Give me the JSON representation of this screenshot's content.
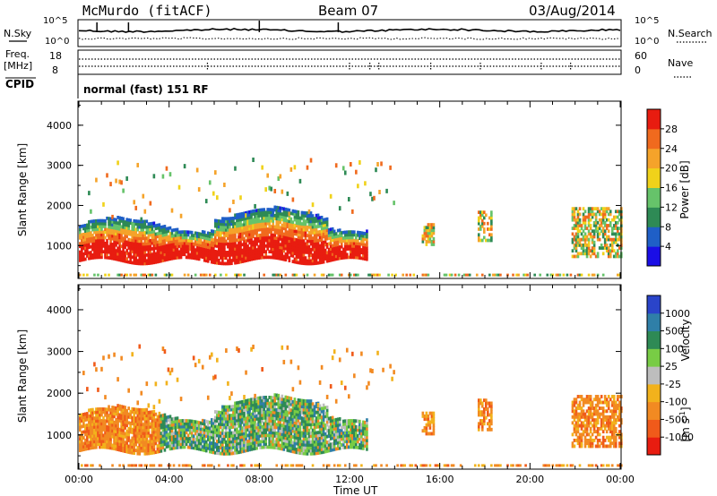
{
  "header": {
    "station": "McMurdo (fitACF)",
    "beam": "Beam 07",
    "date": "03/Aug/2014"
  },
  "noise_panel": {
    "left_label": "N.Sky",
    "right_label": "N.Search",
    "y_ticks_left": [
      "10^5",
      "10^0"
    ],
    "y_ticks_right": [
      "10^5",
      "10^0"
    ]
  },
  "freq_panel": {
    "left_label": "Freq.",
    "left_unit": "[MHz]",
    "right_label": "Nave",
    "y_ticks_left": [
      "18",
      "8"
    ],
    "y_ticks_right": [
      "60",
      "0"
    ]
  },
  "cpid_panel": {
    "label": "CPID",
    "text": "normal (fast) 151 RF"
  },
  "chart_data": [
    {
      "type": "heatmap",
      "title": "",
      "ylabel": "Slant Range [km]",
      "xlabel": "",
      "x_range_hours": [
        0,
        24
      ],
      "ylim": [
        180,
        4600
      ],
      "y_ticks": [
        "1000",
        "2000",
        "3000",
        "4000"
      ],
      "colorbar": {
        "label": "Power [dB]",
        "ticks": [
          "4",
          "8",
          "12",
          "16",
          "20",
          "24",
          "28"
        ],
        "colors": [
          "#1a0ee6",
          "#1f5fc7",
          "#2e8a55",
          "#66c36a",
          "#f0d21a",
          "#f5a32a",
          "#f06a1e",
          "#e81c10"
        ]
      }
    },
    {
      "type": "heatmap",
      "title": "",
      "ylabel": "Slant Range [km]",
      "xlabel": "Time UT",
      "x_range_hours": [
        0,
        24
      ],
      "ylim": [
        180,
        4600
      ],
      "y_ticks": [
        "1000",
        "2000",
        "3000",
        "4000"
      ],
      "x_ticks": [
        "00:00",
        "04:00",
        "08:00",
        "12:00",
        "16:00",
        "20:00",
        "00:00"
      ],
      "colorbar": {
        "label": "Velocity",
        "unit": "[m s",
        "unit_exp": "-1",
        "unit_close": "]",
        "ticks": [
          "1000",
          "500",
          "100",
          "25",
          "-25",
          "-100",
          "-500",
          "-1000"
        ],
        "colors": [
          "#2a44c9",
          "#2f7fa8",
          "#2e8a55",
          "#78cc45",
          "#bdbdbd",
          "#f2b21c",
          "#f28a22",
          "#f05a1a",
          "#e81c10"
        ]
      }
    }
  ]
}
